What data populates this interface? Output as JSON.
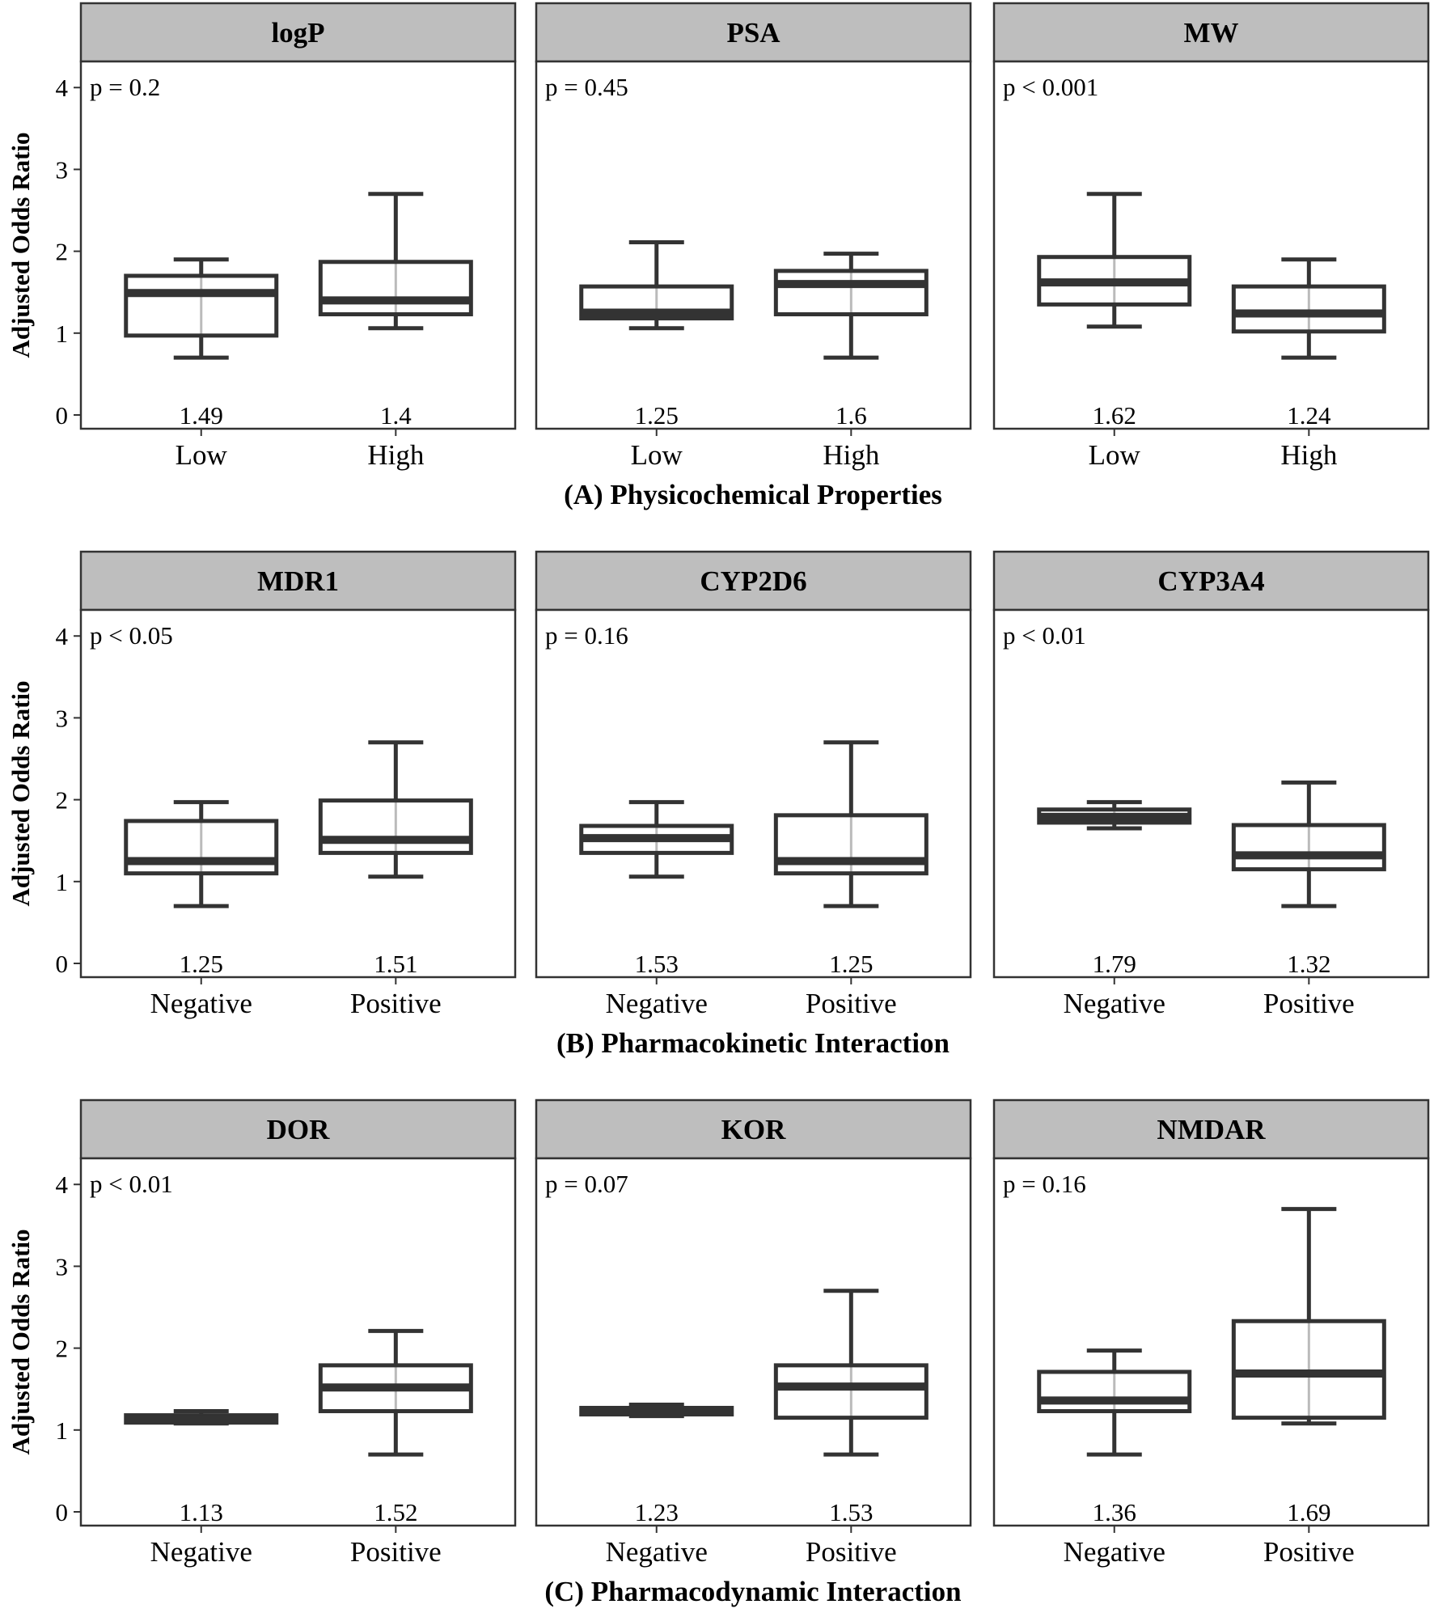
{
  "chart_data": {
    "type": "boxplot",
    "y_axis": {
      "label": "Adjusted Odds Ratio",
      "ticks": [
        "0",
        "1",
        "2",
        "3",
        "4"
      ],
      "ylim": [
        0,
        4.2
      ]
    },
    "colors": {
      "box": "#333333",
      "whisker_light": "#bbbbbb",
      "strip": "#bebebe",
      "frame": "#333333"
    },
    "rows": [
      {
        "section_label": "(A) Physicochemical Properties",
        "categories": [
          "Low",
          "High"
        ],
        "panels": [
          {
            "title": "logP",
            "p_value": "p = 0.2",
            "boxes": [
              {
                "category": "Low",
                "whisker_low": 0.7,
                "q1": 0.97,
                "median": 1.49,
                "q3": 1.7,
                "whisker_high": 1.9,
                "label": "1.49"
              },
              {
                "category": "High",
                "whisker_low": 1.06,
                "q1": 1.23,
                "median": 1.4,
                "q3": 1.87,
                "whisker_high": 2.7,
                "label": "1.4"
              }
            ]
          },
          {
            "title": "PSA",
            "p_value": "p = 0.45",
            "boxes": [
              {
                "category": "Low",
                "whisker_low": 1.06,
                "q1": 1.18,
                "median": 1.25,
                "q3": 1.57,
                "whisker_high": 2.11,
                "label": "1.25"
              },
              {
                "category": "High",
                "whisker_low": 0.7,
                "q1": 1.23,
                "median": 1.6,
                "q3": 1.76,
                "whisker_high": 1.97,
                "label": "1.6"
              }
            ]
          },
          {
            "title": "MW",
            "p_value": "p < 0.001",
            "boxes": [
              {
                "category": "Low",
                "whisker_low": 1.08,
                "q1": 1.35,
                "median": 1.62,
                "q3": 1.93,
                "whisker_high": 2.7,
                "label": "1.62"
              },
              {
                "category": "High",
                "whisker_low": 0.7,
                "q1": 1.02,
                "median": 1.24,
                "q3": 1.57,
                "whisker_high": 1.9,
                "label": "1.24"
              }
            ]
          }
        ]
      },
      {
        "section_label": "(B) Pharmacokinetic Interaction",
        "categories": [
          "Negative",
          "Positive"
        ],
        "panels": [
          {
            "title": "MDR1",
            "p_value": "p < 0.05",
            "boxes": [
              {
                "category": "Negative",
                "whisker_low": 0.7,
                "q1": 1.1,
                "median": 1.25,
                "q3": 1.74,
                "whisker_high": 1.97,
                "label": "1.25"
              },
              {
                "category": "Positive",
                "whisker_low": 1.06,
                "q1": 1.35,
                "median": 1.51,
                "q3": 1.99,
                "whisker_high": 2.7,
                "label": "1.51"
              }
            ]
          },
          {
            "title": "CYP2D6",
            "p_value": "p = 0.16",
            "boxes": [
              {
                "category": "Negative",
                "whisker_low": 1.06,
                "q1": 1.35,
                "median": 1.53,
                "q3": 1.68,
                "whisker_high": 1.97,
                "label": "1.53"
              },
              {
                "category": "Positive",
                "whisker_low": 0.7,
                "q1": 1.1,
                "median": 1.25,
                "q3": 1.81,
                "whisker_high": 2.7,
                "label": "1.25"
              }
            ]
          },
          {
            "title": "CYP3A4",
            "p_value": "p < 0.01",
            "boxes": [
              {
                "category": "Negative",
                "whisker_low": 1.65,
                "q1": 1.72,
                "median": 1.79,
                "q3": 1.88,
                "whisker_high": 1.97,
                "label": "1.79"
              },
              {
                "category": "Positive",
                "whisker_low": 0.7,
                "q1": 1.15,
                "median": 1.32,
                "q3": 1.69,
                "whisker_high": 2.21,
                "label": "1.32"
              }
            ]
          }
        ]
      },
      {
        "section_label": "(C) Pharmacodynamic Interaction",
        "categories": [
          "Negative",
          "Positive"
        ],
        "panels": [
          {
            "title": "DOR",
            "p_value": "p < 0.01",
            "boxes": [
              {
                "category": "Negative",
                "whisker_low": 1.08,
                "q1": 1.09,
                "median": 1.13,
                "q3": 1.18,
                "whisker_high": 1.23,
                "label": "1.13"
              },
              {
                "category": "Positive",
                "whisker_low": 0.7,
                "q1": 1.23,
                "median": 1.52,
                "q3": 1.79,
                "whisker_high": 2.21,
                "label": "1.52"
              }
            ]
          },
          {
            "title": "KOR",
            "p_value": "p = 0.07",
            "boxes": [
              {
                "category": "Negative",
                "whisker_low": 1.17,
                "q1": 1.19,
                "median": 1.23,
                "q3": 1.27,
                "whisker_high": 1.31,
                "label": "1.23"
              },
              {
                "category": "Positive",
                "whisker_low": 0.7,
                "q1": 1.15,
                "median": 1.53,
                "q3": 1.79,
                "whisker_high": 2.7,
                "label": "1.53"
              }
            ]
          },
          {
            "title": "NMDAR",
            "p_value": "p = 0.16",
            "boxes": [
              {
                "category": "Negative",
                "whisker_low": 0.7,
                "q1": 1.23,
                "median": 1.36,
                "q3": 1.71,
                "whisker_high": 1.97,
                "label": "1.36"
              },
              {
                "category": "Positive",
                "whisker_low": 1.08,
                "q1": 1.15,
                "median": 1.69,
                "q3": 2.33,
                "whisker_high": 3.7,
                "label": "1.69"
              }
            ]
          }
        ]
      }
    ]
  }
}
